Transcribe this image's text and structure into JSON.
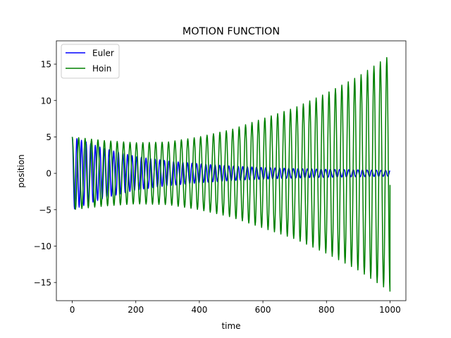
{
  "chart_data": {
    "type": "line",
    "title": "MOTION FUNCTION",
    "xlabel": "time",
    "ylabel": "position",
    "xlim": [
      -50,
      1050
    ],
    "ylim": [
      -17.5,
      18.2
    ],
    "xticks": [
      0,
      200,
      400,
      600,
      800,
      1000
    ],
    "yticks": [
      -15,
      -10,
      -5,
      0,
      5,
      10,
      15
    ],
    "grid": false,
    "legend_position": "top-left",
    "series": [
      {
        "name": "Euler",
        "color": "#0000ff",
        "x_range": [
          0,
          1000
        ],
        "oscillation_period": 14.5,
        "start_value": 5.0,
        "amplitude_envelope": [
          [
            0,
            5.0
          ],
          [
            100,
            3.4
          ],
          [
            200,
            2.3
          ],
          [
            300,
            1.7
          ],
          [
            400,
            1.3
          ],
          [
            500,
            1.0
          ],
          [
            600,
            0.8
          ],
          [
            700,
            0.65
          ],
          [
            800,
            0.55
          ],
          [
            900,
            0.48
          ],
          [
            1000,
            0.4
          ]
        ]
      },
      {
        "name": "Hoin",
        "color": "#008000",
        "x_range": [
          0,
          1000
        ],
        "oscillation_period": 20.2,
        "start_value": 5.0,
        "end_value": -1.6,
        "amplitude_envelope": [
          [
            0,
            5.0
          ],
          [
            100,
            4.5
          ],
          [
            200,
            4.2
          ],
          [
            300,
            4.3
          ],
          [
            400,
            5.0
          ],
          [
            500,
            6.0
          ],
          [
            600,
            7.5
          ],
          [
            700,
            9.0
          ],
          [
            800,
            11.0
          ],
          [
            900,
            13.3
          ],
          [
            1000,
            16.2
          ]
        ]
      }
    ]
  }
}
